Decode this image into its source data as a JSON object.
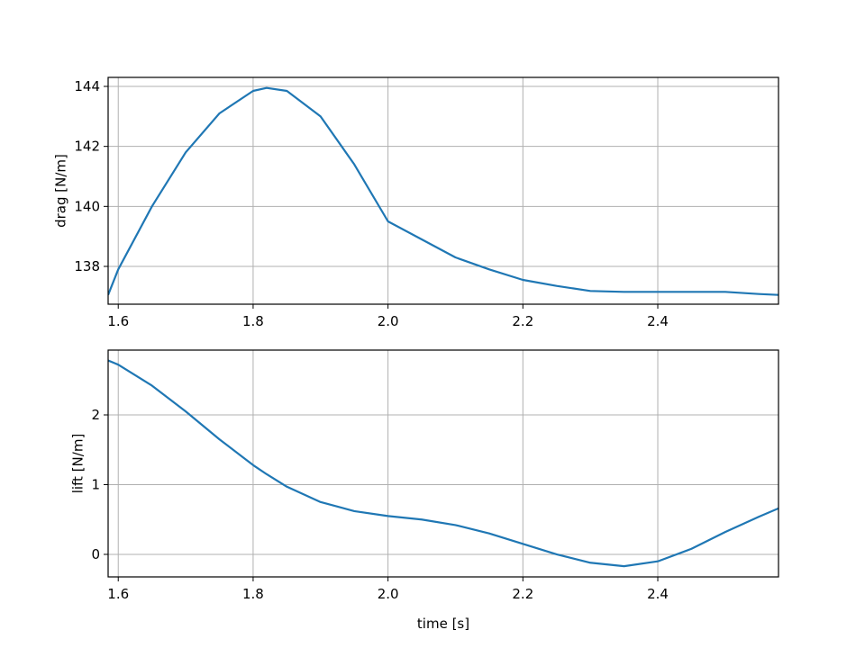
{
  "chart_data": [
    {
      "type": "line",
      "x": [
        1.585,
        1.6,
        1.65,
        1.7,
        1.75,
        1.8,
        1.82,
        1.85,
        1.9,
        1.95,
        2.0,
        2.05,
        2.1,
        2.15,
        2.2,
        2.25,
        2.3,
        2.35,
        2.4,
        2.45,
        2.5,
        2.55,
        2.579
      ],
      "series": [
        {
          "color": "#1f77b4",
          "values": [
            137.05,
            137.9,
            140.0,
            141.8,
            143.1,
            143.85,
            143.95,
            143.85,
            143.0,
            141.4,
            139.5,
            138.9,
            138.3,
            137.9,
            137.55,
            137.35,
            137.18,
            137.15,
            137.15,
            137.15,
            137.15,
            137.08,
            137.05
          ]
        }
      ],
      "ylabel": "drag [N/m]",
      "xlim": [
        1.585,
        2.579
      ],
      "xticks": [
        1.6,
        1.8,
        {
          "value": 2.0,
          "label": "2.0"
        },
        2.2,
        2.4
      ],
      "ylim": [
        136.74,
        144.3
      ],
      "yticks": [
        138,
        140,
        142,
        144
      ],
      "grid": true
    },
    {
      "type": "line",
      "x": [
        1.585,
        1.6,
        1.65,
        1.7,
        1.75,
        1.8,
        1.82,
        1.85,
        1.9,
        1.95,
        2.0,
        2.05,
        2.1,
        2.15,
        2.2,
        2.25,
        2.3,
        2.35,
        2.4,
        2.45,
        2.5,
        2.55,
        2.579
      ],
      "series": [
        {
          "color": "#1f77b4",
          "values": [
            2.78,
            2.72,
            2.42,
            2.05,
            1.65,
            1.28,
            1.15,
            0.97,
            0.75,
            0.62,
            0.55,
            0.5,
            0.42,
            0.3,
            0.15,
            0.0,
            -0.12,
            -0.17,
            -0.1,
            0.08,
            0.32,
            0.54,
            0.66
          ]
        }
      ],
      "xlabel": "time [s]",
      "ylabel": "lift [N/m]",
      "xlim": [
        1.585,
        2.579
      ],
      "xticks": [
        1.6,
        1.8,
        {
          "value": 2.0,
          "label": "2.0"
        },
        2.2,
        2.4
      ],
      "ylim": [
        -0.323,
        2.929
      ],
      "yticks": [
        0,
        1,
        2
      ],
      "grid": true
    }
  ]
}
